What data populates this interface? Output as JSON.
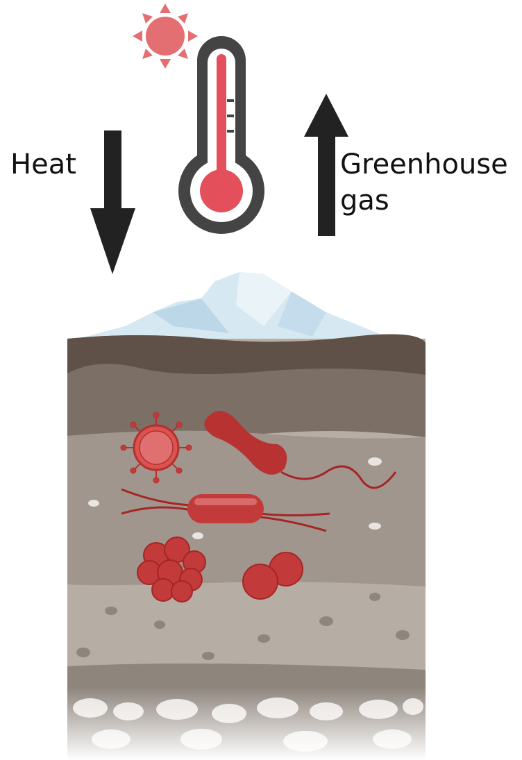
{
  "labels": {
    "heat": "Heat",
    "greenhouse_gas": [
      "Greenhouse",
      "gas"
    ]
  }
}
